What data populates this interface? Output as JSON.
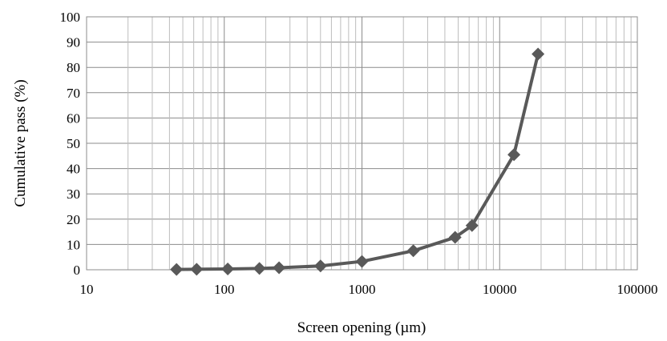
{
  "chart_data": {
    "type": "scatter",
    "title": "",
    "xlabel": "Screen opening (µm)",
    "ylabel": "Cumulative pass (%)",
    "xscale": "log",
    "xlim": [
      10,
      100000
    ],
    "ylim": [
      0,
      100
    ],
    "xticks": [
      "10",
      "100",
      "1000",
      "10000",
      "100000"
    ],
    "yticks": [
      "0",
      "10",
      "20",
      "30",
      "40",
      "50",
      "60",
      "70",
      "80",
      "90",
      "100"
    ],
    "grid": true,
    "legend": "none",
    "series": [
      {
        "color": "#595959",
        "marker": "diamond",
        "line": "straight",
        "points": [
          {
            "x": 45,
            "y": 0.1
          },
          {
            "x": 63,
            "y": 0.2
          },
          {
            "x": 106,
            "y": 0.3
          },
          {
            "x": 180,
            "y": 0.5
          },
          {
            "x": 250,
            "y": 0.8
          },
          {
            "x": 500,
            "y": 1.5
          },
          {
            "x": 1000,
            "y": 3.3
          },
          {
            "x": 2360,
            "y": 7.5
          },
          {
            "x": 4750,
            "y": 12.8
          },
          {
            "x": 6300,
            "y": 17.5
          },
          {
            "x": 12700,
            "y": 45.5
          },
          {
            "x": 19000,
            "y": 85.3
          }
        ]
      }
    ]
  }
}
